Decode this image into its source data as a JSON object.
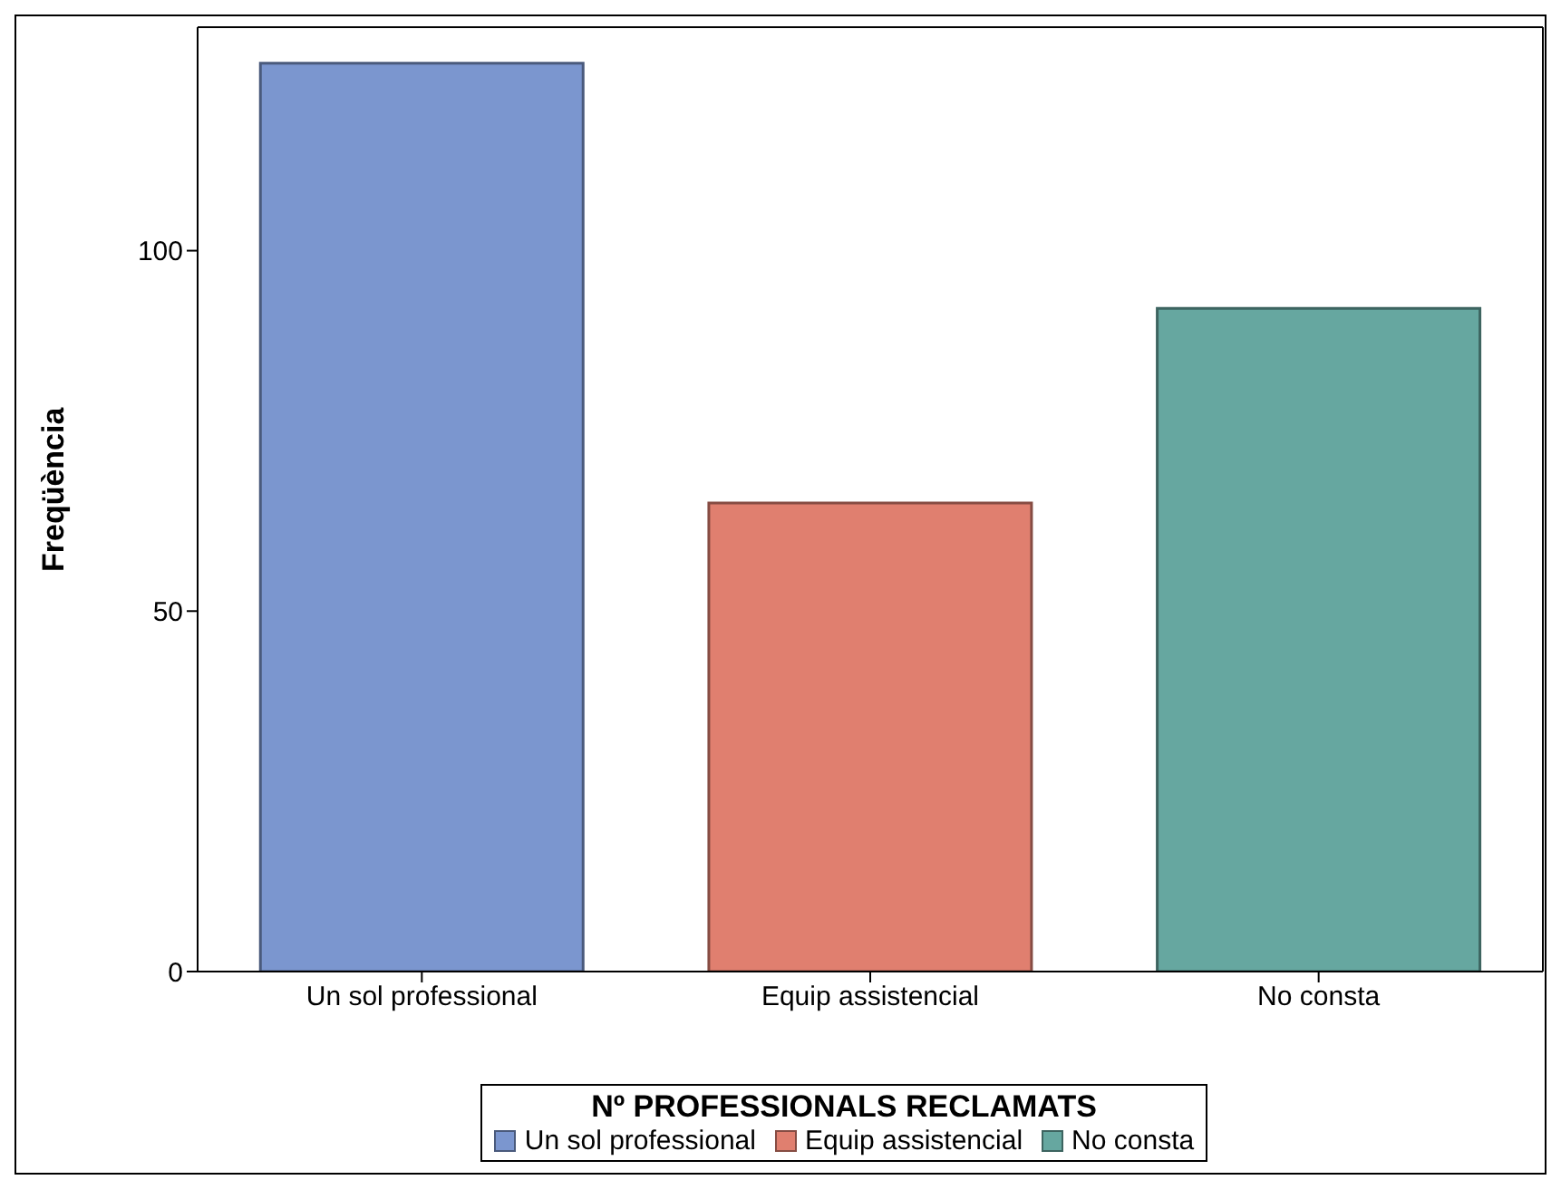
{
  "chart_data": {
    "type": "bar",
    "ylabel": "Freqüència",
    "legend_title": "Nº PROFESSIONALS RECLAMATS",
    "categories": [
      "Un sol professional",
      "Equip assistencial",
      "No consta"
    ],
    "series": [
      {
        "name": "Un sol professional",
        "color": "#7b96cf",
        "values": [
          126,
          null,
          null
        ]
      },
      {
        "name": "Equip assistencial",
        "color": "#e07f6f",
        "values": [
          null,
          65,
          null
        ]
      },
      {
        "name": "No consta",
        "color": "#66a7a0",
        "values": [
          null,
          null,
          92
        ]
      }
    ],
    "stacked": true,
    "ylim": [
      0,
      131
    ],
    "yticks": [
      0,
      50,
      100
    ],
    "grid": false,
    "legend": "bottom"
  }
}
